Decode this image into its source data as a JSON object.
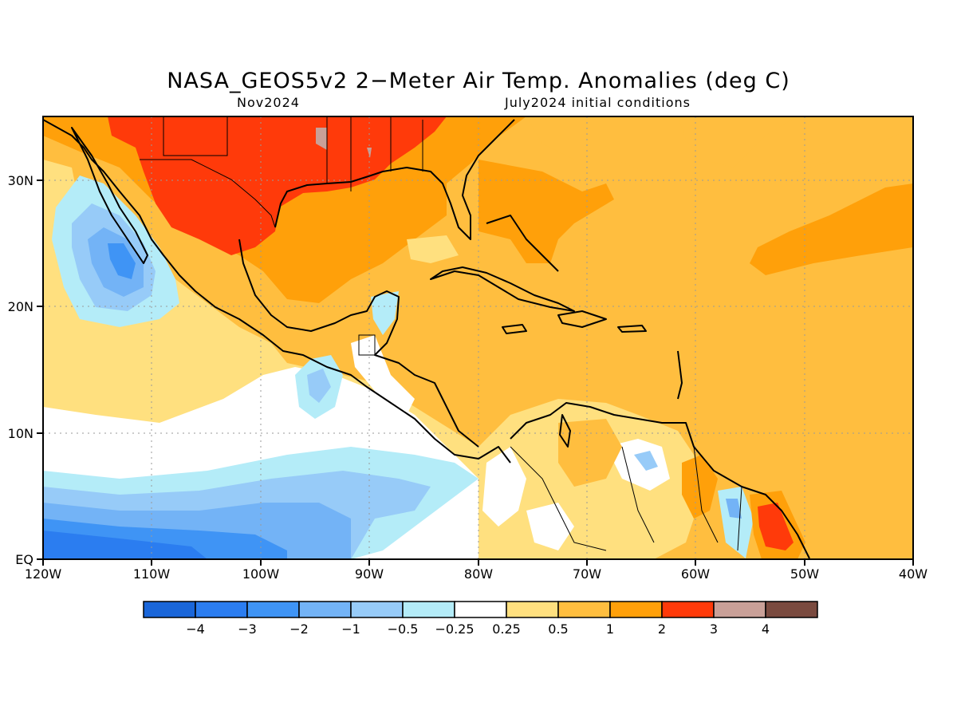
{
  "title": "NASA_GEOS5v2 2−Meter Air Temp. Anomalies (deg C)",
  "subtitle_left": "Nov2024",
  "subtitle_right": "July2024 initial conditions",
  "map": {
    "lon_range": [
      -120,
      -40
    ],
    "lat_range": [
      0,
      35
    ],
    "x_ticks": [
      "120W",
      "110W",
      "100W",
      "90W",
      "80W",
      "70W",
      "60W",
      "50W",
      "40W"
    ],
    "y_ticks": [
      "EQ",
      "10N",
      "20N",
      "30N"
    ],
    "gridlines": true
  },
  "colorbar": {
    "labels": [
      "−4",
      "−3",
      "−2",
      "−1",
      "−0.5",
      "−0.25",
      "0.25",
      "0.5",
      "1",
      "2",
      "3",
      "4"
    ],
    "colors": [
      "#1a66d9",
      "#2b7df0",
      "#3f94f5",
      "#73b3f6",
      "#97cbf8",
      "#b4ecf8",
      "#ffffff",
      "#ffe07f",
      "#ffbe3f",
      "#ffa00a",
      "#ff3a0a",
      "#c9a098",
      "#7a4a3f"
    ]
  }
}
